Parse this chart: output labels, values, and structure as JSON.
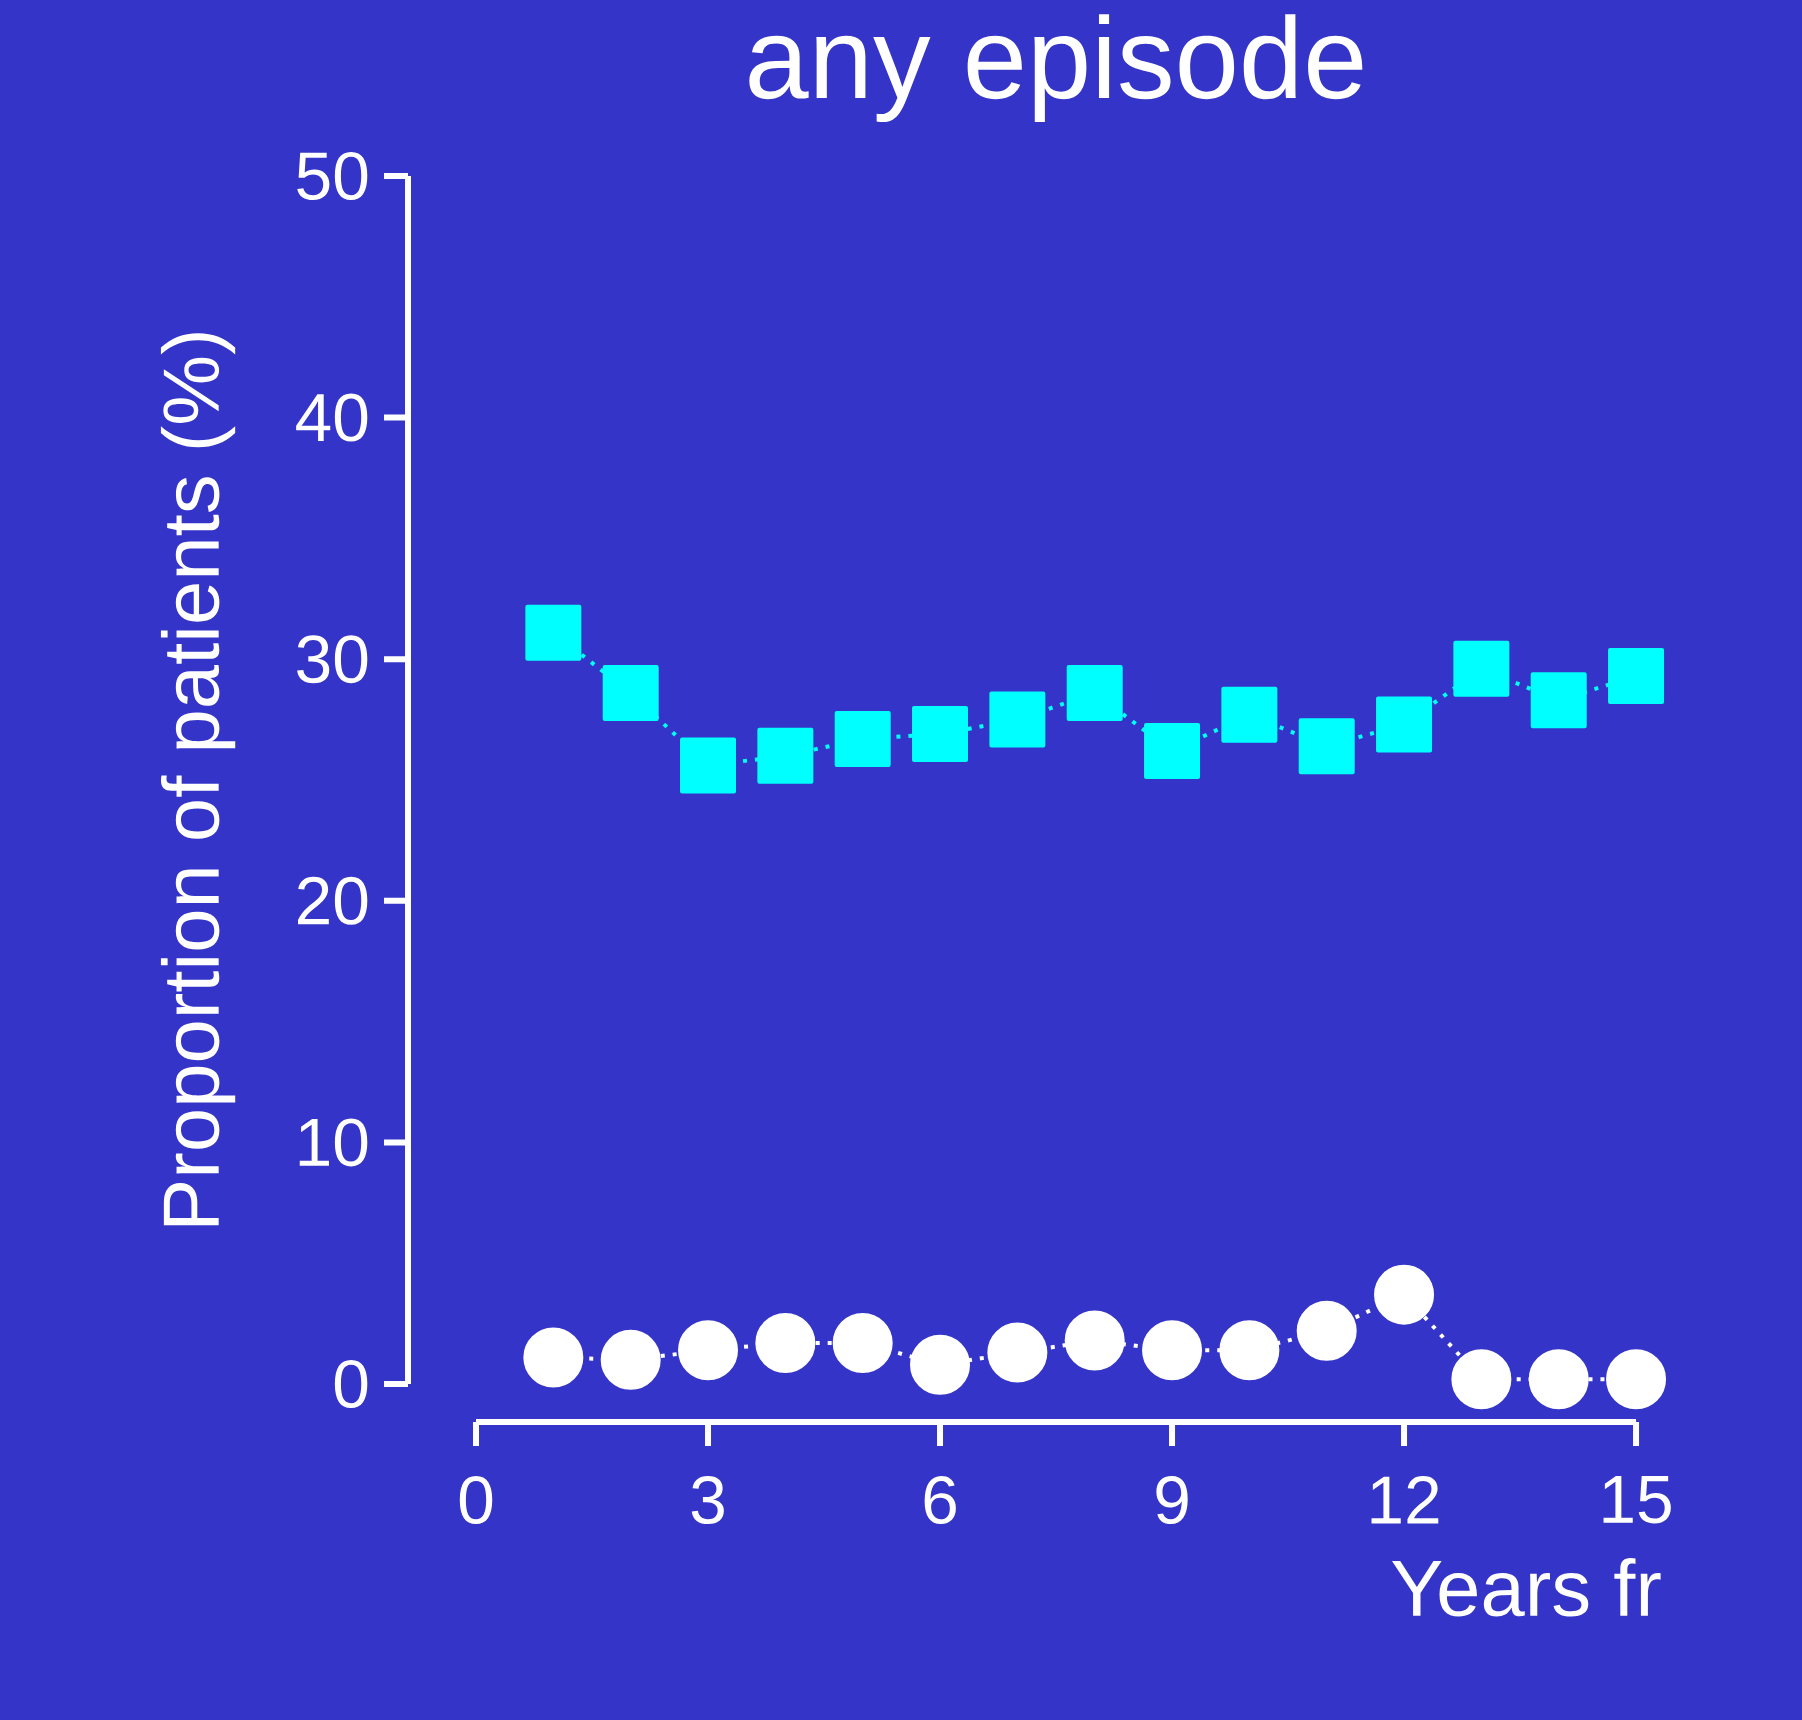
{
  "chart_data": {
    "type": "line",
    "title": "any episode",
    "xlabel": "Years fr",
    "ylabel": "Proportion of patients (%)",
    "x": [
      1,
      2,
      3,
      4,
      5,
      6,
      7,
      8,
      9,
      10,
      11,
      12,
      13,
      14,
      15
    ],
    "xlim": [
      0,
      15
    ],
    "xticks": [
      0,
      3,
      6,
      9,
      12,
      15
    ],
    "ylim": [
      0,
      50
    ],
    "yticks": [
      0,
      10,
      20,
      30,
      40,
      50
    ],
    "line_style": "dotted",
    "series": [
      {
        "color": "#00ffff",
        "marker": "square",
        "values": [
          31.1,
          28.6,
          25.6,
          26.0,
          26.7,
          26.9,
          27.5,
          28.6,
          26.2,
          27.7,
          26.4,
          27.3,
          29.6,
          28.3,
          29.3
        ]
      },
      {
        "color": "#ffffff",
        "marker": "circle",
        "values": [
          1.1,
          1.0,
          1.4,
          1.7,
          1.7,
          0.8,
          1.3,
          1.8,
          1.4,
          1.4,
          2.2,
          3.7,
          0.2,
          0.2,
          0.2
        ]
      }
    ]
  }
}
